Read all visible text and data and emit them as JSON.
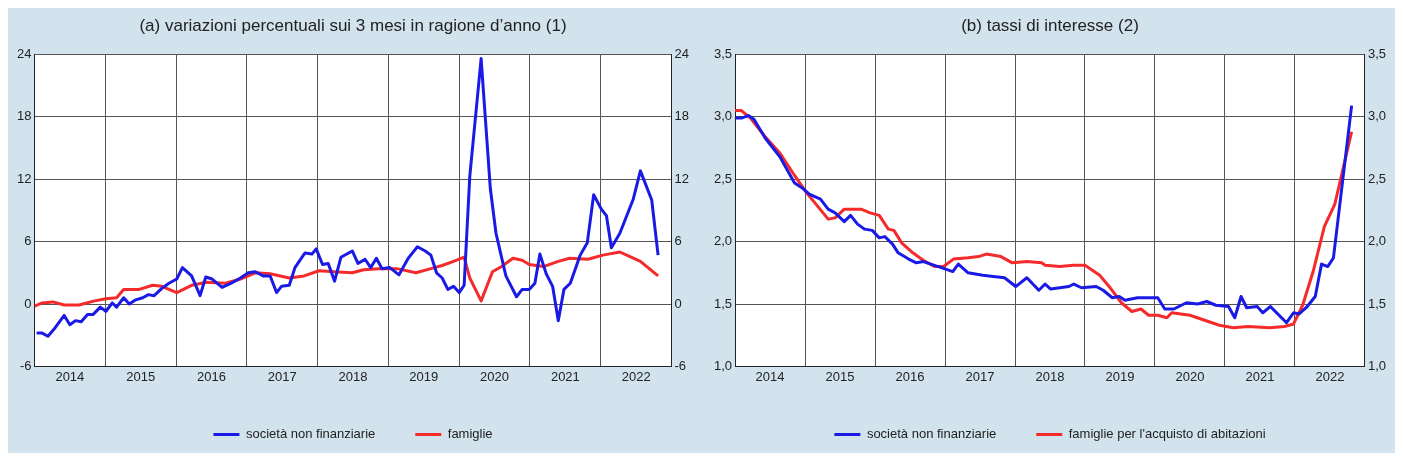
{
  "chart_data": [
    {
      "type": "line",
      "title": "(a) variazioni percentuali sui 3 mesi in ragione d’anno (1)",
      "xlim": [
        2014,
        2023
      ],
      "xticks": [
        {
          "value": 2014.5,
          "label": "2014"
        },
        {
          "value": 2015,
          "label": null
        },
        {
          "value": 2015.5,
          "label": "2015"
        },
        {
          "value": 2016,
          "label": null
        },
        {
          "value": 2016.5,
          "label": "2016"
        },
        {
          "value": 2017,
          "label": null
        },
        {
          "value": 2017.5,
          "label": "2017"
        },
        {
          "value": 2018,
          "label": null
        },
        {
          "value": 2018.5,
          "label": "2018"
        },
        {
          "value": 2019,
          "label": null
        },
        {
          "value": 2019.5,
          "label": "2019"
        },
        {
          "value": 2020,
          "label": null
        },
        {
          "value": 2020.5,
          "label": "2020"
        },
        {
          "value": 2021,
          "label": null
        },
        {
          "value": 2021.5,
          "label": "2021"
        },
        {
          "value": 2022,
          "label": null
        },
        {
          "value": 2022.5,
          "label": "2022"
        }
      ],
      "ylim": [
        -6,
        24
      ],
      "yticks": [
        -6,
        0,
        6,
        12,
        18,
        24
      ],
      "y2lim": [
        -6,
        24
      ],
      "y2ticks": [
        -6,
        0,
        6,
        12,
        18,
        24
      ],
      "grid": true,
      "legend": "bottom",
      "line_style": "solid",
      "marker": "none",
      "series": [
        {
          "name": "società non finanziarie",
          "color": "#1a1ae6",
          "x": [
            2014.03,
            2014.11,
            2014.19,
            2014.29,
            2014.42,
            2014.5,
            2014.58,
            2014.66,
            2014.75,
            2014.83,
            2014.93,
            2015.01,
            2015.1,
            2015.16,
            2015.26,
            2015.34,
            2015.43,
            2015.53,
            2015.61,
            2015.69,
            2015.8,
            2015.9,
            2016.01,
            2016.09,
            2016.22,
            2016.34,
            2016.42,
            2016.51,
            2016.65,
            2016.78,
            2016.91,
            2017.02,
            2017.12,
            2017.23,
            2017.33,
            2017.42,
            2017.49,
            2017.6,
            2017.68,
            2017.82,
            2017.92,
            2017.98,
            2018.07,
            2018.15,
            2018.24,
            2018.33,
            2018.49,
            2018.57,
            2018.67,
            2018.75,
            2018.83,
            2018.91,
            2019.02,
            2019.15,
            2019.28,
            2019.41,
            2019.52,
            2019.6,
            2019.68,
            2019.76,
            2019.84,
            2019.92,
            2020,
            2020.07,
            2020.15,
            2020.31,
            2020.44,
            2020.52,
            2020.66,
            2020.81,
            2020.89,
            2020.99,
            2021.07,
            2021.14,
            2021.23,
            2021.32,
            2021.4,
            2021.48,
            2021.57,
            2021.71,
            2021.81,
            2021.9,
            2022.01,
            2022.08,
            2022.15,
            2022.27,
            2022.46,
            2022.56,
            2022.72,
            2022.81
          ],
          "values": [
            -2.8,
            -2.8,
            -3.1,
            -2.3,
            -1.1,
            -2,
            -1.6,
            -1.7,
            -1,
            -1,
            -0.3,
            -0.7,
            0.1,
            -0.3,
            0.6,
            0,
            0.4,
            0.6,
            0.9,
            0.8,
            1.5,
            2,
            2.4,
            3.5,
            2.7,
            0.8,
            2.6,
            2.4,
            1.6,
            2,
            2.5,
            3,
            3.1,
            2.7,
            2.7,
            1.1,
            1.7,
            1.8,
            3.5,
            4.9,
            4.8,
            5.3,
            3.8,
            3.9,
            2.2,
            4.5,
            5.1,
            3.9,
            4.3,
            3.5,
            4.4,
            3.4,
            3.5,
            2.8,
            4.4,
            5.5,
            5.1,
            4.7,
            3,
            2.5,
            1.4,
            1.7,
            1.1,
            1.8,
            12.3,
            23.6,
            11.1,
            6.8,
            2.7,
            0.7,
            1.4,
            1.4,
            2,
            4.8,
            2.9,
            1.7,
            -1.6,
            1.4,
            2,
            4.7,
            5.9,
            10.5,
            9.1,
            8.5,
            5.4,
            6.8,
            10.1,
            12.8,
            10,
            4.7
          ]
        },
        {
          "name": "famiglie",
          "color": "#f52a2a",
          "x": [
            2014,
            2014.11,
            2014.26,
            2014.42,
            2014.63,
            2014.85,
            2015.01,
            2015.16,
            2015.26,
            2015.48,
            2015.67,
            2015.8,
            2016.01,
            2016.22,
            2016.43,
            2016.7,
            2016.91,
            2017.12,
            2017.33,
            2017.6,
            2017.81,
            2018.02,
            2018.23,
            2018.49,
            2018.65,
            2018.86,
            2019.12,
            2019.39,
            2019.6,
            2019.76,
            2019.92,
            2020.07,
            2020.15,
            2020.31,
            2020.47,
            2020.6,
            2020.76,
            2020.89,
            2020.99,
            2021.19,
            2021.4,
            2021.56,
            2021.82,
            2022.03,
            2022.27,
            2022.56,
            2022.81
          ],
          "values": [
            -0.2,
            0.1,
            0.2,
            -0.1,
            -0.1,
            0.3,
            0.5,
            0.6,
            1.4,
            1.4,
            1.8,
            1.7,
            1.1,
            1.8,
            2.1,
            2,
            2.4,
            3,
            2.9,
            2.5,
            2.7,
            3.2,
            3.1,
            3,
            3.3,
            3.4,
            3.4,
            3,
            3.4,
            3.7,
            4.1,
            4.5,
            2.5,
            0.3,
            3.1,
            3.6,
            4.4,
            4.2,
            3.8,
            3.6,
            4.1,
            4.4,
            4.3,
            4.7,
            5,
            4.1,
            2.7
          ]
        }
      ]
    },
    {
      "type": "line",
      "title": "(b) tassi di interesse (2)",
      "xlim": [
        2014,
        2023
      ],
      "xticks": [
        {
          "value": 2014.5,
          "label": "2014"
        },
        {
          "value": 2015,
          "label": null
        },
        {
          "value": 2015.5,
          "label": "2015"
        },
        {
          "value": 2016,
          "label": null
        },
        {
          "value": 2016.5,
          "label": "2016"
        },
        {
          "value": 2017,
          "label": null
        },
        {
          "value": 2017.5,
          "label": "2017"
        },
        {
          "value": 2018,
          "label": null
        },
        {
          "value": 2018.5,
          "label": "2018"
        },
        {
          "value": 2019,
          "label": null
        },
        {
          "value": 2019.5,
          "label": "2019"
        },
        {
          "value": 2020,
          "label": null
        },
        {
          "value": 2020.5,
          "label": "2020"
        },
        {
          "value": 2021,
          "label": null
        },
        {
          "value": 2021.5,
          "label": "2021"
        },
        {
          "value": 2022,
          "label": null
        },
        {
          "value": 2022.5,
          "label": "2022"
        }
      ],
      "ylim": [
        1,
        3.5
      ],
      "yticks": [
        {
          "value": 1,
          "label": "1,0"
        },
        {
          "value": 1.5,
          "label": "1,5"
        },
        {
          "value": 2,
          "label": "2,0"
        },
        {
          "value": 2.5,
          "label": "2,5"
        },
        {
          "value": 3,
          "label": "3,0"
        },
        {
          "value": 3.5,
          "label": "3,5"
        }
      ],
      "y2lim": [
        1,
        3.5
      ],
      "y2ticks": [
        {
          "value": 1,
          "label": "1,0"
        },
        {
          "value": 1.5,
          "label": "1,5"
        },
        {
          "value": 2,
          "label": "2,0"
        },
        {
          "value": 2.5,
          "label": "2,5"
        },
        {
          "value": 3,
          "label": "3,0"
        },
        {
          "value": 3.5,
          "label": "3,5"
        }
      ],
      "grid": true,
      "legend": "bottom",
      "line_style": "solid",
      "marker": "none",
      "series": [
        {
          "name": "società non finanziarie",
          "color": "#1a1ae6",
          "x": [
            2014.01,
            2014.09,
            2014.19,
            2014.27,
            2014.43,
            2014.64,
            2014.85,
            2014.96,
            2015.06,
            2015.22,
            2015.33,
            2015.43,
            2015.56,
            2015.65,
            2015.75,
            2015.85,
            2015.96,
            2016.06,
            2016.14,
            2016.25,
            2016.33,
            2016.48,
            2016.59,
            2016.69,
            2016.85,
            2017.01,
            2017.11,
            2017.19,
            2017.33,
            2017.54,
            2017.69,
            2017.85,
            2018.01,
            2018.17,
            2018.34,
            2018.43,
            2018.51,
            2018.64,
            2018.77,
            2018.84,
            2018.95,
            2019.16,
            2019.26,
            2019.39,
            2019.49,
            2019.57,
            2019.75,
            2020.04,
            2020.14,
            2020.27,
            2020.45,
            2020.61,
            2020.74,
            2020.87,
            2021.05,
            2021.14,
            2021.23,
            2021.31,
            2021.46,
            2021.54,
            2021.65,
            2021.88,
            2021.98,
            2022.06,
            2022.16,
            2022.29,
            2022.38,
            2022.47,
            2022.55,
            2022.81
          ],
          "values": [
            2.99,
            2.99,
            3.01,
            2.98,
            2.83,
            2.68,
            2.47,
            2.43,
            2.38,
            2.34,
            2.26,
            2.23,
            2.16,
            2.21,
            2.14,
            2.1,
            2.09,
            2.03,
            2.04,
            1.98,
            1.91,
            1.86,
            1.83,
            1.84,
            1.81,
            1.78,
            1.76,
            1.82,
            1.75,
            1.73,
            1.72,
            1.71,
            1.64,
            1.71,
            1.61,
            1.66,
            1.62,
            1.63,
            1.64,
            1.66,
            1.63,
            1.64,
            1.61,
            1.55,
            1.56,
            1.53,
            1.55,
            1.55,
            1.46,
            1.46,
            1.51,
            1.5,
            1.52,
            1.49,
            1.48,
            1.39,
            1.56,
            1.47,
            1.48,
            1.43,
            1.48,
            1.35,
            1.43,
            1.42,
            1.47,
            1.56,
            1.82,
            1.8,
            1.87,
            3.09
          ]
        },
        {
          "name": "famiglie per l'acquisto di abitazioni",
          "color": "#f52a2a",
          "x": [
            2014,
            2014.09,
            2014.22,
            2014.43,
            2014.64,
            2014.85,
            2015.01,
            2015.17,
            2015.33,
            2015.43,
            2015.56,
            2015.8,
            2015.93,
            2016.06,
            2016.19,
            2016.27,
            2016.38,
            2016.54,
            2016.69,
            2016.85,
            2016.98,
            2017.12,
            2017.33,
            2017.48,
            2017.59,
            2017.8,
            2017.96,
            2018.17,
            2018.38,
            2018.43,
            2018.64,
            2018.84,
            2019,
            2019.21,
            2019.36,
            2019.52,
            2019.67,
            2019.8,
            2019.91,
            2020.04,
            2020.17,
            2020.24,
            2020.5,
            2020.71,
            2020.92,
            2021.12,
            2021.33,
            2021.64,
            2021.85,
            2021.98,
            2022.11,
            2022.26,
            2022.42,
            2022.57,
            2022.81
          ],
          "values": [
            3.05,
            3.05,
            2.99,
            2.84,
            2.71,
            2.53,
            2.4,
            2.29,
            2.18,
            2.19,
            2.26,
            2.26,
            2.23,
            2.21,
            2.1,
            2.09,
            1.99,
            1.91,
            1.85,
            1.8,
            1.8,
            1.86,
            1.87,
            1.88,
            1.9,
            1.88,
            1.83,
            1.84,
            1.83,
            1.81,
            1.8,
            1.81,
            1.81,
            1.73,
            1.63,
            1.51,
            1.44,
            1.46,
            1.41,
            1.41,
            1.39,
            1.43,
            1.41,
            1.37,
            1.33,
            1.31,
            1.32,
            1.31,
            1.32,
            1.34,
            1.49,
            1.76,
            2.12,
            2.3,
            2.88
          ]
        }
      ]
    }
  ]
}
